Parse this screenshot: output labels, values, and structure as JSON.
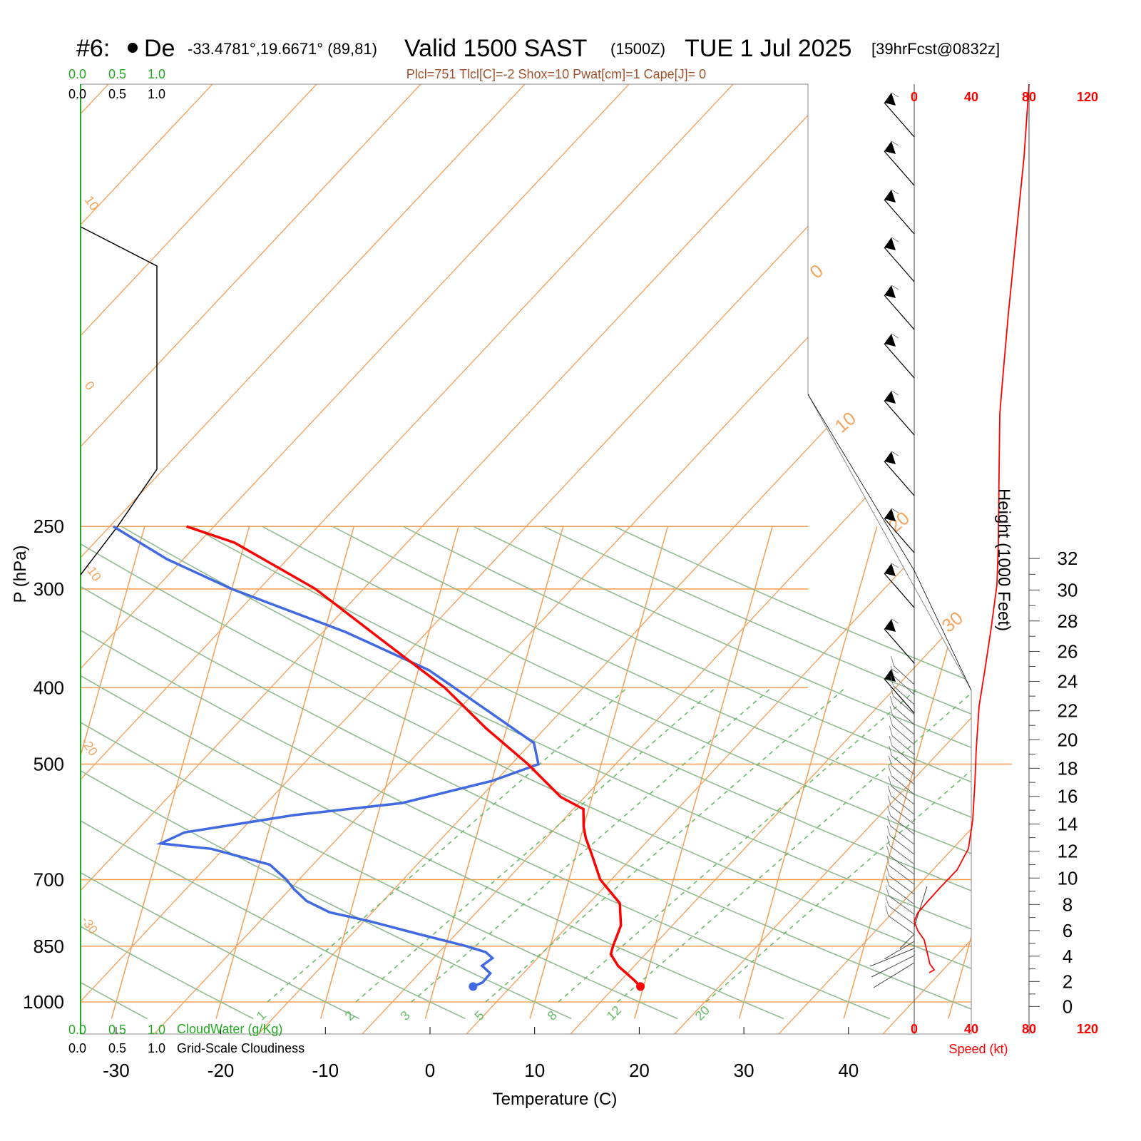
{
  "header": {
    "station_id": "#6:",
    "station_name": "De",
    "coords": "-33.4781°,19.6671° (89,81)",
    "valid": "Valid 1500 SAST",
    "utc": "(1500Z)",
    "date": "TUE 1 Jul 2025",
    "forecast": "[39hrFcst@0832z]",
    "indices": "Plcl=751 Tlcl[C]=-2 Shox=10 Pwat[cm]=1 Cape[J]= 0"
  },
  "cloud_scale": {
    "green_ticks": [
      "0.0",
      "0.5",
      "1.0"
    ],
    "black_ticks": [
      "0.0",
      "0.5",
      "1.0"
    ],
    "cloud_water_label": "CloudWater (g/Kg)",
    "cloudiness_label": "Grid-Scale Cloudiness"
  },
  "speed_axis": {
    "ticks": [
      "0",
      "40",
      "80",
      "120"
    ],
    "label": "Speed (kt)"
  },
  "colors": {
    "temperature": "#ff0000",
    "dewpoint": "#4169e1",
    "isotherm": "#f4a460",
    "dry_adiabat": "#8fbc8f",
    "mixing_ratio": "#66bb66",
    "speed_profile": "#ff0000"
  },
  "chart_data": {
    "type": "line",
    "xlabel": "Temperature (C)",
    "ylabel": "P (hPa)",
    "y2label": "Height (1000 Feet)",
    "x_ticks": [
      -30,
      -20,
      -10,
      0,
      10,
      20,
      30,
      40
    ],
    "p_ticks": [
      250,
      300,
      400,
      500,
      700,
      850,
      1000
    ],
    "height_ticks": [
      0,
      2,
      4,
      6,
      8,
      10,
      12,
      14,
      16,
      18,
      20,
      22,
      24,
      26,
      28,
      30,
      32
    ],
    "skew_isotherm_labels": [
      "10",
      "0",
      "-10",
      "-20",
      "-30"
    ],
    "skew_isotherm_labels_right": [
      "0",
      "10",
      "20",
      "30"
    ],
    "mixing_ratio_labels": [
      "1",
      "2",
      "3",
      "5",
      "8",
      "12",
      "20"
    ],
    "series": [
      {
        "name": "Temperature",
        "points": [
          [
            19.7,
            956
          ],
          [
            19.0,
            940
          ],
          [
            17.0,
            900
          ],
          [
            16.0,
            870
          ],
          [
            16.0,
            850
          ],
          [
            16.2,
            800
          ],
          [
            15.5,
            750
          ],
          [
            13.0,
            700
          ],
          [
            11.5,
            650
          ],
          [
            10.5,
            620
          ],
          [
            10.0,
            600
          ],
          [
            9.5,
            570
          ],
          [
            7.0,
            550
          ],
          [
            3.0,
            500
          ],
          [
            -2.0,
            450
          ],
          [
            -7.0,
            400
          ],
          [
            -14.0,
            350
          ],
          [
            -22.0,
            300
          ],
          [
            -31.0,
            262
          ],
          [
            -36.0,
            250
          ]
        ]
      },
      {
        "name": "Dewpoint",
        "points": [
          [
            3.7,
            956
          ],
          [
            4.5,
            945
          ],
          [
            5.0,
            920
          ],
          [
            4.0,
            900
          ],
          [
            4.8,
            880
          ],
          [
            4.0,
            865
          ],
          [
            2.0,
            850
          ],
          [
            -3.0,
            820
          ],
          [
            -8.0,
            790
          ],
          [
            -12.0,
            770
          ],
          [
            -14.5,
            745
          ],
          [
            -16.0,
            720
          ],
          [
            -17.0,
            700
          ],
          [
            -19.0,
            670
          ],
          [
            -25.0,
            640
          ],
          [
            -30.0,
            630
          ],
          [
            -28.0,
            610
          ],
          [
            -18.0,
            580
          ],
          [
            -8.0,
            560
          ],
          [
            0.0,
            525
          ],
          [
            4.0,
            500
          ],
          [
            3.0,
            470
          ],
          [
            -2.0,
            430
          ],
          [
            -9.0,
            380
          ],
          [
            -18.0,
            340
          ],
          [
            -30.0,
            300
          ],
          [
            -37.0,
            275
          ],
          [
            -43.0,
            250
          ]
        ]
      }
    ]
  }
}
